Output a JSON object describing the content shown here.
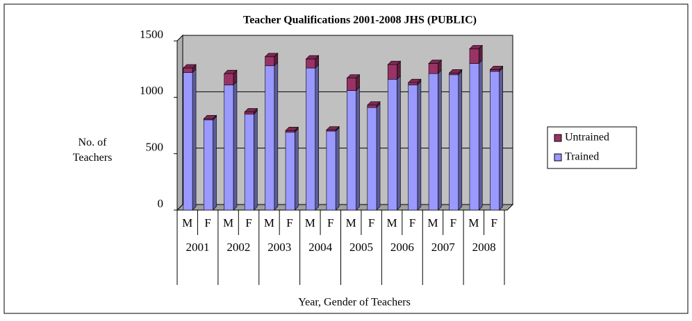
{
  "chart_data": {
    "type": "bar3d_stacked",
    "title": "Teacher Qualifications 2001-2008 JHS (PUBLIC)",
    "y_label": "No. of Teachers",
    "x_label": "Year, Gender of Teachers",
    "categories": [
      "M",
      "F",
      "M",
      "F",
      "M",
      "F",
      "M",
      "F",
      "M",
      "F",
      "M",
      "F",
      "M",
      "F",
      "M",
      "F"
    ],
    "groups": [
      "2001",
      "2002",
      "2003",
      "2004",
      "2005",
      "2006",
      "2007",
      "2008"
    ],
    "series": [
      {
        "name": "Trained",
        "color": "#9999ff",
        "values": [
          1220,
          800,
          1110,
          850,
          1280,
          690,
          1260,
          700,
          1060,
          910,
          1160,
          1110,
          1210,
          1200,
          1300,
          1230
        ]
      },
      {
        "name": "Untrained",
        "color": "#993366",
        "values": [
          40,
          10,
          100,
          20,
          80,
          15,
          80,
          10,
          110,
          20,
          130,
          20,
          90,
          15,
          130,
          15
        ]
      }
    ],
    "ylim": [
      0,
      1500
    ],
    "yticks": [
      0,
      500,
      1000,
      1500
    ],
    "grid": true,
    "legend": "right"
  }
}
